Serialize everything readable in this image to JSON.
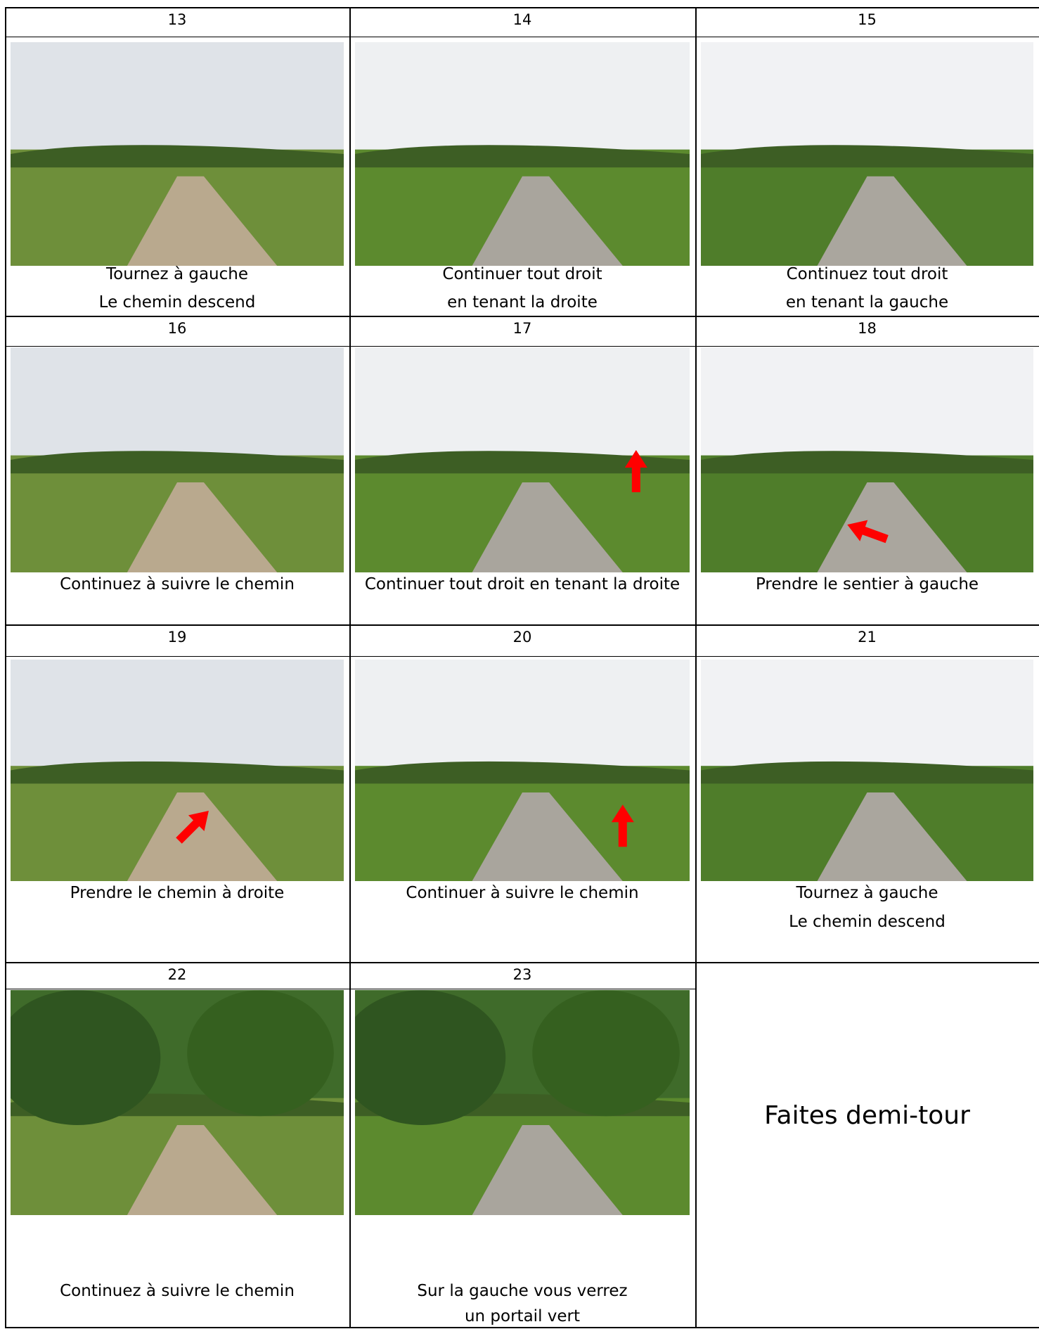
{
  "cells": [
    {
      "number": 13,
      "caption": [
        "Tournez à gauche",
        "Le chemin descend"
      ]
    },
    {
      "number": 14,
      "caption": [
        "Continuer tout droit",
        "en tenant la droite"
      ]
    },
    {
      "number": 15,
      "caption": [
        "Continuez tout droit",
        "en tenant la gauche"
      ]
    },
    {
      "number": 16,
      "caption": [
        "Continuez à suivre le chemin"
      ]
    },
    {
      "number": 17,
      "caption": [
        "Continuer tout droit en tenant la droite"
      ]
    },
    {
      "number": 18,
      "caption": [
        "Prendre le sentier à gauche"
      ]
    },
    {
      "number": 19,
      "caption": [
        "Prendre le chemin à droite"
      ]
    },
    {
      "number": 20,
      "caption": [
        "Continuer à suivre le chemin"
      ]
    },
    {
      "number": 21,
      "caption": [
        "Tournez à gauche",
        "Le chemin descend"
      ]
    },
    {
      "number": 22,
      "caption": [
        "Continuez à suivre le chemin"
      ]
    },
    {
      "number": 23,
      "caption": [
        "Sur la gauche vous verrez",
        "un portail vert"
      ]
    }
  ],
  "final_note": "Faites demi-tour"
}
